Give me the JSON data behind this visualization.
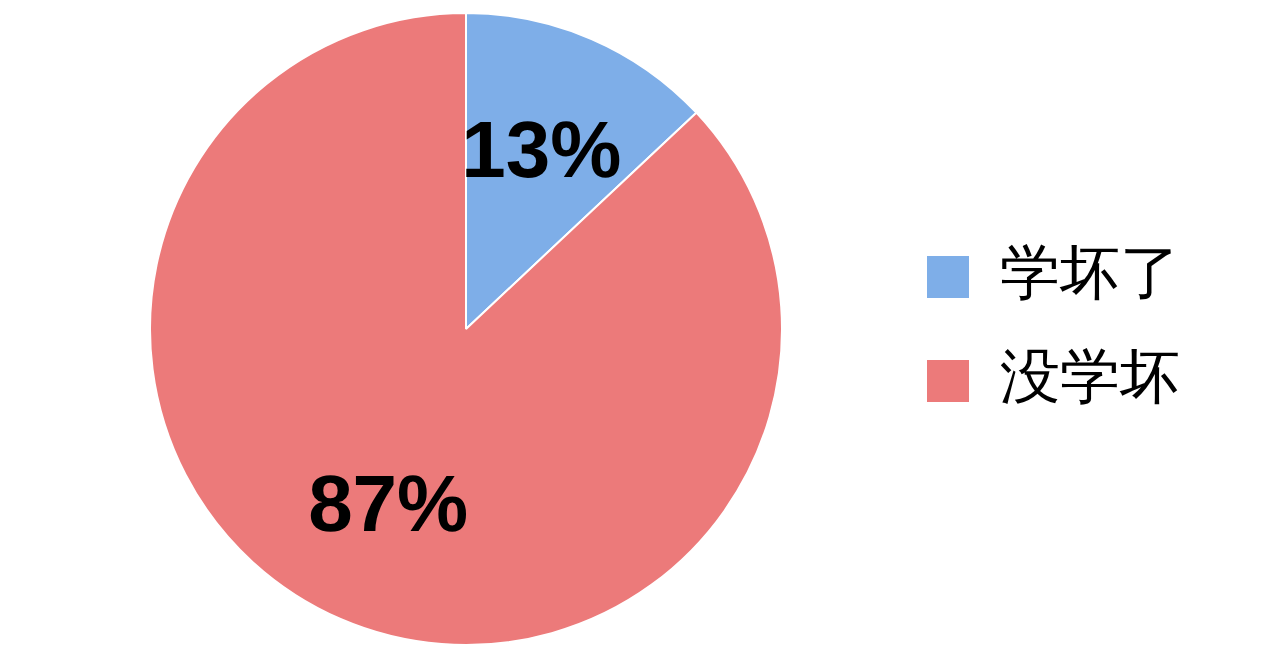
{
  "chart_data": {
    "type": "pie",
    "categories": [
      "学坏了",
      "没学坏"
    ],
    "values": [
      13,
      87
    ],
    "colors": [
      "#7eaee8",
      "#ec7a7a"
    ],
    "value_labels": [
      "13%",
      "87%"
    ],
    "legend": "right"
  }
}
